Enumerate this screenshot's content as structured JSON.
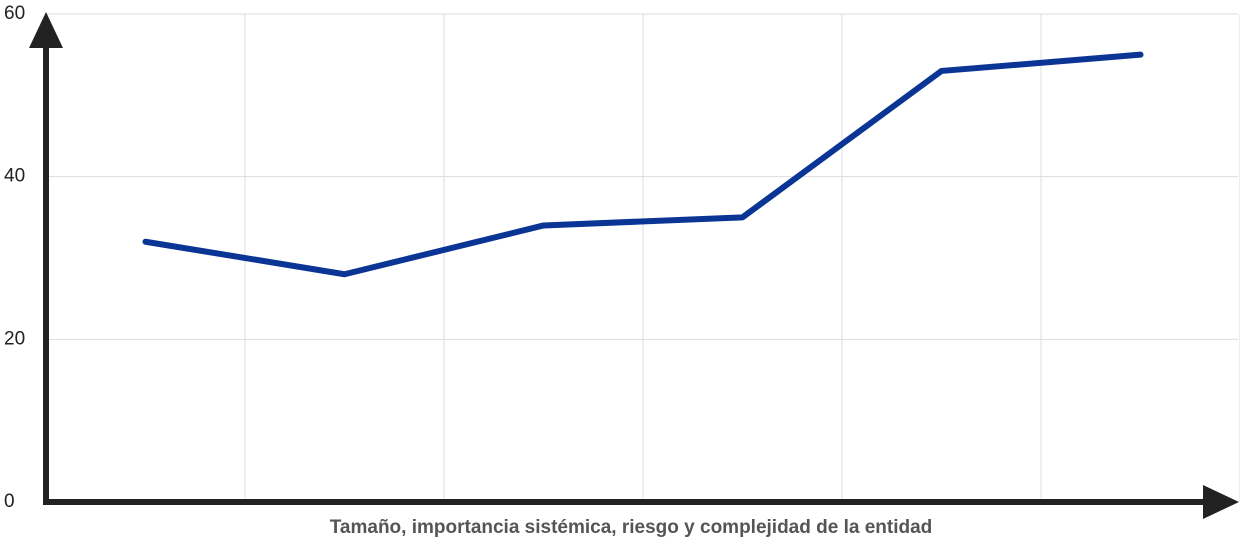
{
  "chart_data": {
    "type": "line",
    "x_label": "Tamaño, importancia sistémica, riesgo y complejidad de la entidad",
    "categories": [
      null,
      null,
      null,
      null,
      null,
      null
    ],
    "series": [
      {
        "name": null,
        "color": "#0a3595",
        "values": [
          32,
          28,
          34,
          35,
          53,
          55
        ]
      }
    ],
    "ylim": [
      0,
      60
    ],
    "yticks": [
      0,
      20,
      40,
      60
    ],
    "grid": true
  }
}
